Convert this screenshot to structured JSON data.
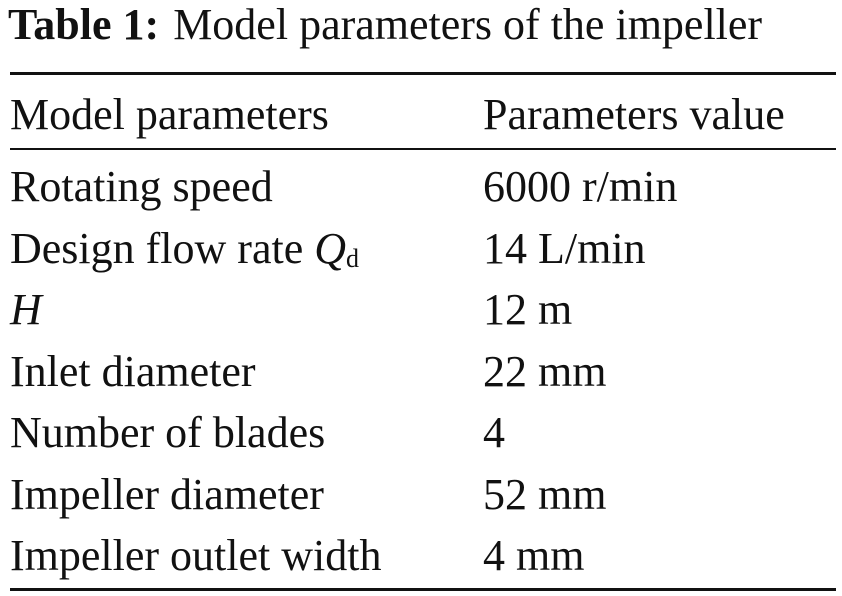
{
  "caption": {
    "label": "Table 1:",
    "title": "Model parameters of the impeller"
  },
  "table": {
    "header": [
      "Model parameters",
      "Parameters value"
    ],
    "rows": [
      [
        "Rotating speed",
        "6000 r/min"
      ],
      [
        {
          "text": "Design flow rate",
          "symbol": "Q",
          "subscript": "d"
        },
        "14 L/min"
      ],
      [
        {
          "symbol": "H"
        },
        "12 m"
      ],
      [
        "Inlet diameter",
        "22 mm"
      ],
      [
        "Number of blades",
        "4"
      ],
      [
        "Impeller diameter",
        "52 mm"
      ],
      [
        "Impeller outlet width",
        "4 mm"
      ]
    ]
  }
}
